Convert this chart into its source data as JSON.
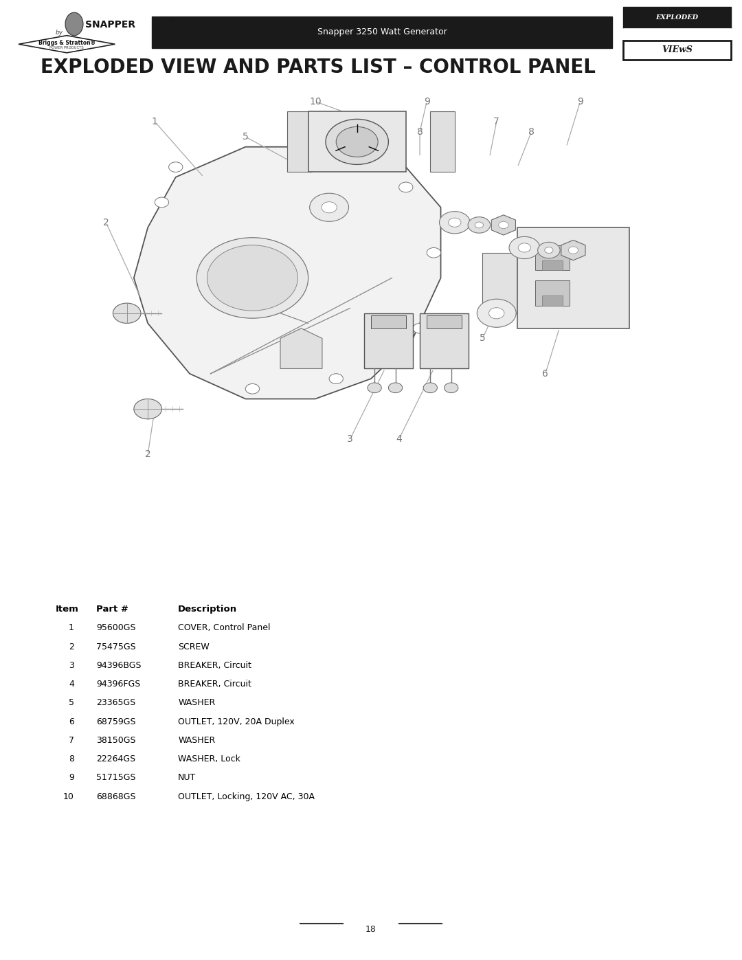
{
  "page_width": 10.8,
  "page_height": 13.97,
  "dpi": 100,
  "background_color": "#ffffff",
  "header_bar_color": "#1a1a1a",
  "header_text": "Snapper 3250 Watt Generator",
  "header_text_color": "#ffffff",
  "title": "EXPLODED VIEW AND PARTS LIST – CONTROL PANEL",
  "title_fontsize": 20,
  "title_color": "#1a1a1a",
  "page_number": "18",
  "parts_table": {
    "headers": [
      "Item",
      "Part #",
      "Description"
    ],
    "rows": [
      [
        "1",
        "95600GS",
        "COVER, Control Panel"
      ],
      [
        "2",
        "75475GS",
        "SCREW"
      ],
      [
        "3",
        "94396BGS",
        "BREAKER, Circuit"
      ],
      [
        "4",
        "94396FGS",
        "BREAKER, Circuit"
      ],
      [
        "5",
        "23365GS",
        "WASHER"
      ],
      [
        "6",
        "68759GS",
        "OUTLET, 120V, 20A Duplex"
      ],
      [
        "7",
        "38150GS",
        "WASHER"
      ],
      [
        "8",
        "22264GS",
        "WASHER, Lock"
      ],
      [
        "9",
        "51715GS",
        "NUT"
      ],
      [
        "10",
        "68868GS",
        "OUTLET, Locking, 120V AC, 30A"
      ]
    ]
  }
}
